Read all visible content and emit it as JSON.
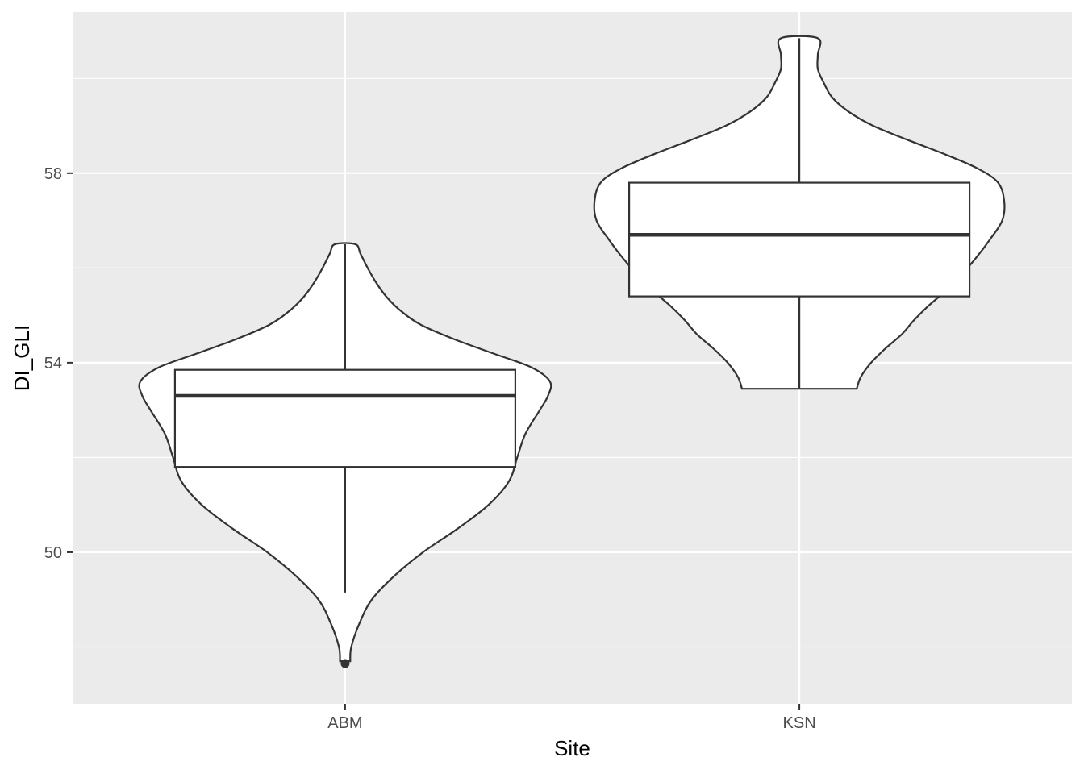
{
  "chart_data": {
    "type": "violin",
    "title": "",
    "xlabel": "Site",
    "ylabel": "DI_GLI",
    "categories": [
      "ABM",
      "KSN"
    ],
    "ylim": [
      46.8,
      61.4
    ],
    "yticks": [
      50,
      54,
      58
    ],
    "ytick_labels": [
      "50",
      "54",
      "58"
    ],
    "grid": true,
    "legend": "none",
    "colors": {
      "panel": "#EBEBEB",
      "grid": "#FFFFFF",
      "stroke": "#333333",
      "fill": "#FFFFFF"
    },
    "groups": [
      {
        "name": "ABM",
        "box": {
          "q1": 51.8,
          "median": 53.3,
          "q3": 53.85,
          "whisker_low": 49.15,
          "whisker_high": 56.5
        },
        "outliers": [
          47.65
        ],
        "violin": {
          "y": [
            47.7,
            48.0,
            48.5,
            49.0,
            49.5,
            50.0,
            50.5,
            51.0,
            51.5,
            52.0,
            52.5,
            53.0,
            53.3,
            53.6,
            53.9,
            54.2,
            54.5,
            54.8,
            55.1,
            55.4,
            55.7,
            56.0,
            56.3,
            56.5
          ],
          "half_width": [
            0.025,
            0.03,
            0.07,
            0.13,
            0.24,
            0.38,
            0.55,
            0.7,
            0.8,
            0.84,
            0.88,
            0.95,
            0.99,
            1.0,
            0.91,
            0.72,
            0.53,
            0.37,
            0.27,
            0.2,
            0.15,
            0.11,
            0.075,
            0.05
          ]
        }
      },
      {
        "name": "KSN",
        "box": {
          "q1": 55.4,
          "median": 56.7,
          "q3": 57.8,
          "whisker_low": 53.45,
          "whisker_high": 60.85
        },
        "outliers": [],
        "violin": {
          "y": [
            53.45,
            53.7,
            54.0,
            54.3,
            54.6,
            54.9,
            55.2,
            55.5,
            55.8,
            56.2,
            56.6,
            57.0,
            57.4,
            57.8,
            58.1,
            58.4,
            58.7,
            59.0,
            59.3,
            59.6,
            59.9,
            60.2,
            60.5,
            60.85
          ],
          "half_width": [
            0.28,
            0.3,
            0.35,
            0.42,
            0.5,
            0.56,
            0.63,
            0.71,
            0.78,
            0.86,
            0.93,
            0.99,
            1.0,
            0.97,
            0.87,
            0.71,
            0.53,
            0.36,
            0.24,
            0.16,
            0.12,
            0.09,
            0.09,
            0.09
          ]
        }
      }
    ]
  }
}
